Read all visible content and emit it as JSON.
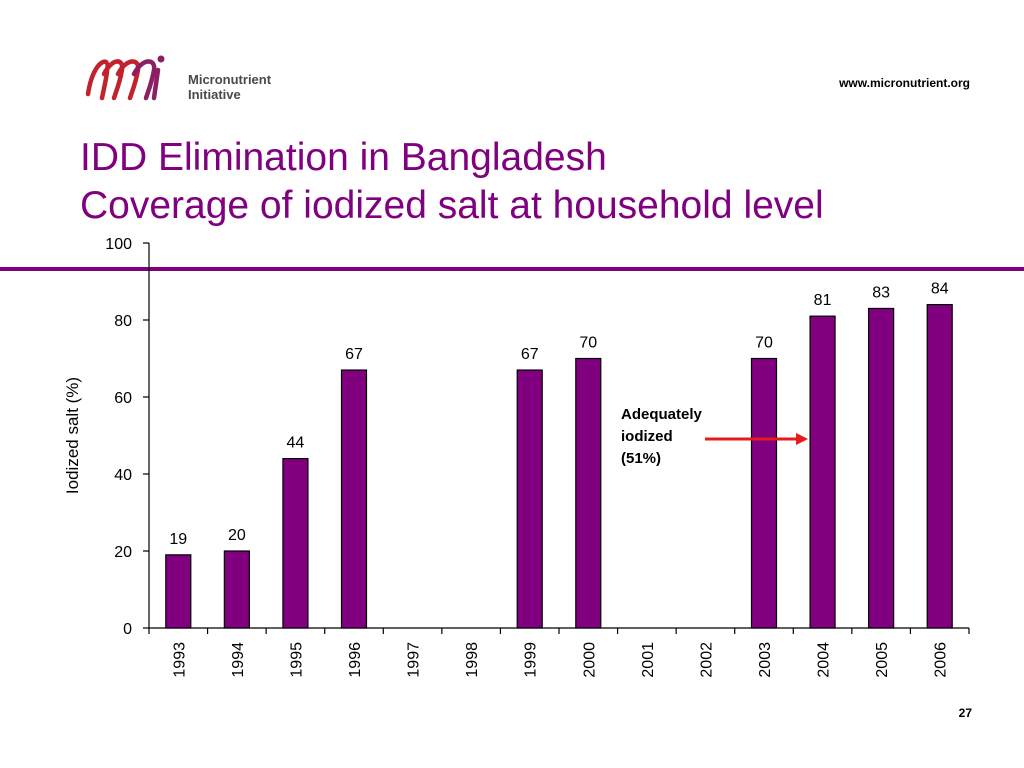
{
  "header": {
    "logo_mark": "mi",
    "logo_line1": "Micronutrient",
    "logo_line2": "Initiative",
    "url": "www.micronutrient.org"
  },
  "title_line1": "IDD Elimination in Bangladesh",
  "title_line2": "Coverage of iodized salt at household level",
  "page_number": "27",
  "colors": {
    "accent": "#800080",
    "bar": "#800080",
    "arrow": "#e8191b",
    "logo_red": "#c0232c"
  },
  "chart_data": {
    "type": "bar",
    "categories": [
      "1993",
      "1994",
      "1995",
      "1996",
      "1997",
      "1998",
      "1999",
      "2000",
      "2001",
      "2002",
      "2003",
      "2004",
      "2005",
      "2006"
    ],
    "values": [
      19,
      20,
      44,
      67,
      null,
      null,
      67,
      70,
      null,
      null,
      70,
      81,
      83,
      84
    ],
    "ylabel": "Iodized salt (%)",
    "ylim": [
      0,
      100
    ],
    "yticks": [
      0,
      20,
      40,
      60,
      80,
      100
    ],
    "grid": false,
    "annotation": {
      "lines": [
        "Adequately",
        "iodized",
        "(51%)"
      ],
      "points_to": "2004"
    }
  }
}
